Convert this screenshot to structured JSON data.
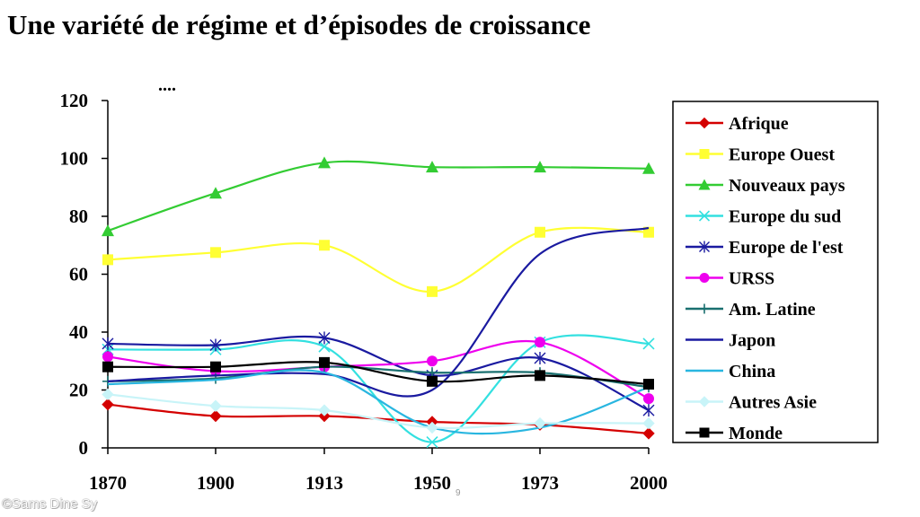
{
  "slide": {
    "title": "Une variété de régime et d’épisodes de croissance",
    "ellipsis": "....",
    "page_number": "9",
    "copyright": "©Sams Dine Sy"
  },
  "chart_data": {
    "type": "line",
    "x": [
      1870,
      1900,
      1913,
      1950,
      1973,
      2000
    ],
    "x_tick_labels": [
      "1870",
      "1900",
      "1913",
      "1950",
      "1973",
      "2000"
    ],
    "ylim": [
      0,
      120
    ],
    "y_ticks": [
      0,
      20,
      40,
      60,
      80,
      100,
      120
    ],
    "grid": false,
    "legend_position": "right",
    "series": [
      {
        "name": "Afrique",
        "color": "#d40000",
        "marker": "diamond",
        "values": [
          15,
          11,
          11,
          9,
          8,
          5
        ]
      },
      {
        "name": "Europe Ouest",
        "color": "#ffff33",
        "marker": "square",
        "values": [
          65,
          67.5,
          70,
          54,
          74.5,
          74.5
        ]
      },
      {
        "name": "Nouveaux pays",
        "color": "#33cc33",
        "marker": "triangle",
        "values": [
          75,
          88,
          98.5,
          97,
          97,
          96.5
        ]
      },
      {
        "name": " Europe du sud",
        "color": "#33e0e0",
        "marker": "x",
        "values": [
          34,
          34,
          35,
          2,
          36.5,
          36
        ]
      },
      {
        "name": "Europe de l'est",
        "color": "#1a1aa0",
        "marker": "star",
        "values": [
          36,
          35.5,
          38,
          25,
          31,
          13
        ]
      },
      {
        "name": "URSS",
        "color": "#ee00ee",
        "marker": "circle",
        "values": [
          31.5,
          26.5,
          28,
          30,
          36.5,
          17
        ]
      },
      {
        "name": "Am. Latine",
        "color": "#1a7070",
        "marker": "plus",
        "values": [
          23,
          24,
          28,
          26,
          26,
          21
        ]
      },
      {
        "name": "Japon",
        "color": "#1a1aa0",
        "marker": "none",
        "values": [
          23,
          25,
          25.5,
          20,
          67,
          76
        ]
      },
      {
        "name": "China",
        "color": "#29b6e0",
        "marker": "none",
        "values": [
          22,
          23.5,
          26,
          7,
          7,
          21
        ]
      },
      {
        "name": "Autres Asie",
        "color": "#c8f4f8",
        "marker": "diamond",
        "values": [
          18.5,
          14.5,
          13,
          7,
          8.5,
          8.5
        ]
      },
      {
        "name": "Monde",
        "color": "#000000",
        "marker": "square",
        "values": [
          28,
          28,
          29.5,
          23,
          25,
          22
        ]
      }
    ]
  }
}
